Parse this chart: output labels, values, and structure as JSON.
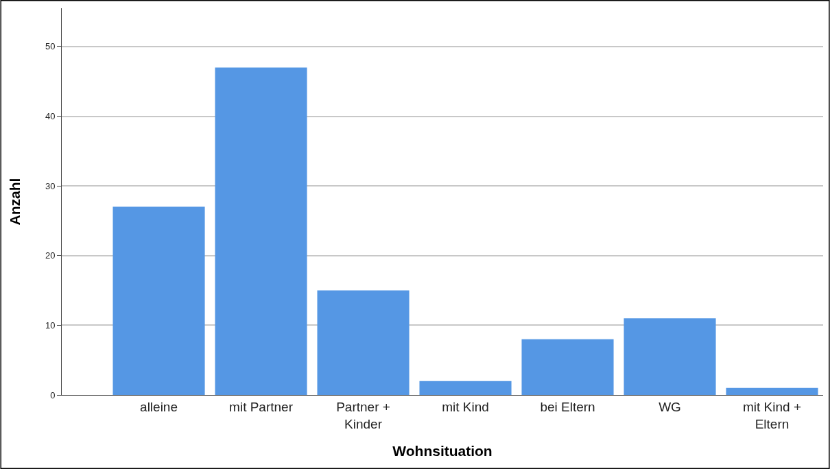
{
  "chart_data": {
    "type": "bar",
    "xlabel": "Wohnsituation",
    "ylabel": "Anzahl",
    "categories": [
      "alleine",
      "mit Partner",
      "Partner +\nKinder",
      "mit Kind",
      "bei Eltern",
      "WG",
      "mit Kind +\nEltern"
    ],
    "values": [
      27,
      47,
      15,
      2,
      8,
      11,
      1
    ],
    "color": "#5597e4",
    "ylim": [
      0,
      55.5
    ],
    "yticks": [
      0,
      10,
      20,
      30,
      40,
      50
    ],
    "grid": "y"
  }
}
